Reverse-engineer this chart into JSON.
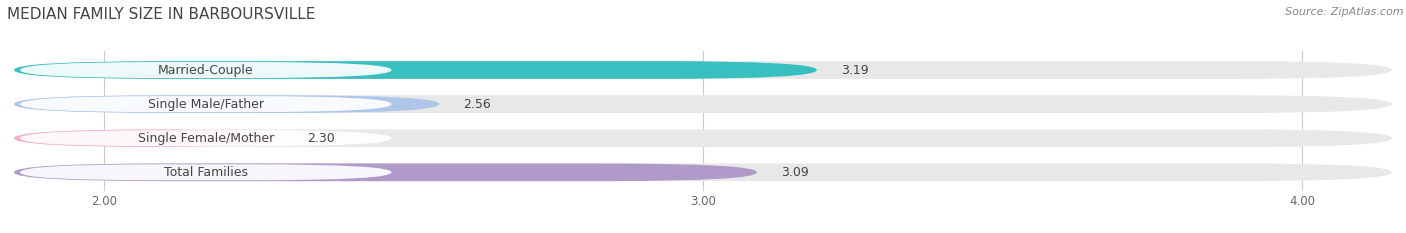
{
  "title": "MEDIAN FAMILY SIZE IN BARBOURSVILLE",
  "source": "Source: ZipAtlas.com",
  "categories": [
    "Married-Couple",
    "Single Male/Father",
    "Single Female/Mother",
    "Total Families"
  ],
  "values": [
    3.19,
    2.56,
    2.3,
    3.09
  ],
  "bar_colors": [
    "#38bfbf",
    "#adc6ea",
    "#f5adc6",
    "#b09aca"
  ],
  "xlim_left": 1.85,
  "xlim_right": 4.15,
  "xticks": [
    2.0,
    3.0,
    4.0
  ],
  "xtick_labels": [
    "2.00",
    "3.00",
    "4.00"
  ],
  "title_fontsize": 11,
  "source_fontsize": 8,
  "bar_label_fontsize": 9,
  "category_fontsize": 9,
  "background_color": "#ffffff",
  "bar_bg_color": "#e8e8e8",
  "bar_height": 0.52
}
